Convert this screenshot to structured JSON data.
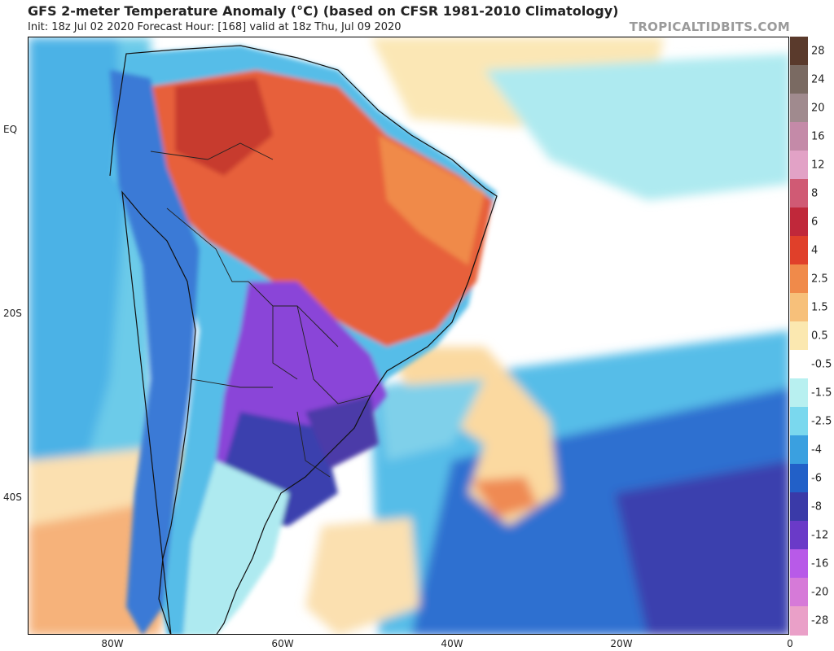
{
  "header": {
    "title": "GFS 2-meter Temperature Anomaly (°C) (based on CFSR 1981-2010 Climatology)",
    "subtitle": "Init: 18z Jul 02 2020   Forecast Hour: [168]   valid at 18z Thu, Jul 09 2020",
    "brand": "TROPICALTIDBITS.COM"
  },
  "axes": {
    "lat_labels": [
      "EQ",
      "20S",
      "40S"
    ],
    "lon_labels": [
      "80W",
      "60W",
      "40W",
      "20W",
      "0"
    ]
  },
  "colorbar": {
    "labels": [
      "28",
      "24",
      "20",
      "16",
      "12",
      "8",
      "6",
      "4",
      "2.5",
      "1.5",
      "0.5",
      "-0.5",
      "-1.5",
      "-2.5",
      "-4",
      "-6",
      "-8",
      "-12",
      "-16",
      "-20",
      "-28"
    ],
    "colors": [
      "#5a3a2c",
      "#7a6a62",
      "#a08a8e",
      "#c48aa8",
      "#e2a2c6",
      "#d05a74",
      "#c0283a",
      "#e0402a",
      "#f08a4a",
      "#f7c07a",
      "#fbe8b0",
      "#ffffff",
      "#b8f0f0",
      "#7ad8ee",
      "#3aa0e0",
      "#2260c8",
      "#3a3aa8",
      "#6a3ac8",
      "#b85ae8",
      "#d67ad8",
      "#eaa0c8"
    ]
  },
  "map": {
    "colors": {
      "ocean_neutral": "#ffffff",
      "warm_light": "#fbe7b5",
      "warm_med": "#f6b27a",
      "warm_strong": "#e7603a",
      "hot": "#c73a2e",
      "cool_light": "#aeeaf0",
      "cool_med": "#56bde8",
      "cool_strong": "#2f6fd0",
      "cold": "#3b3fae",
      "very_cold": "#8a44d8"
    }
  }
}
